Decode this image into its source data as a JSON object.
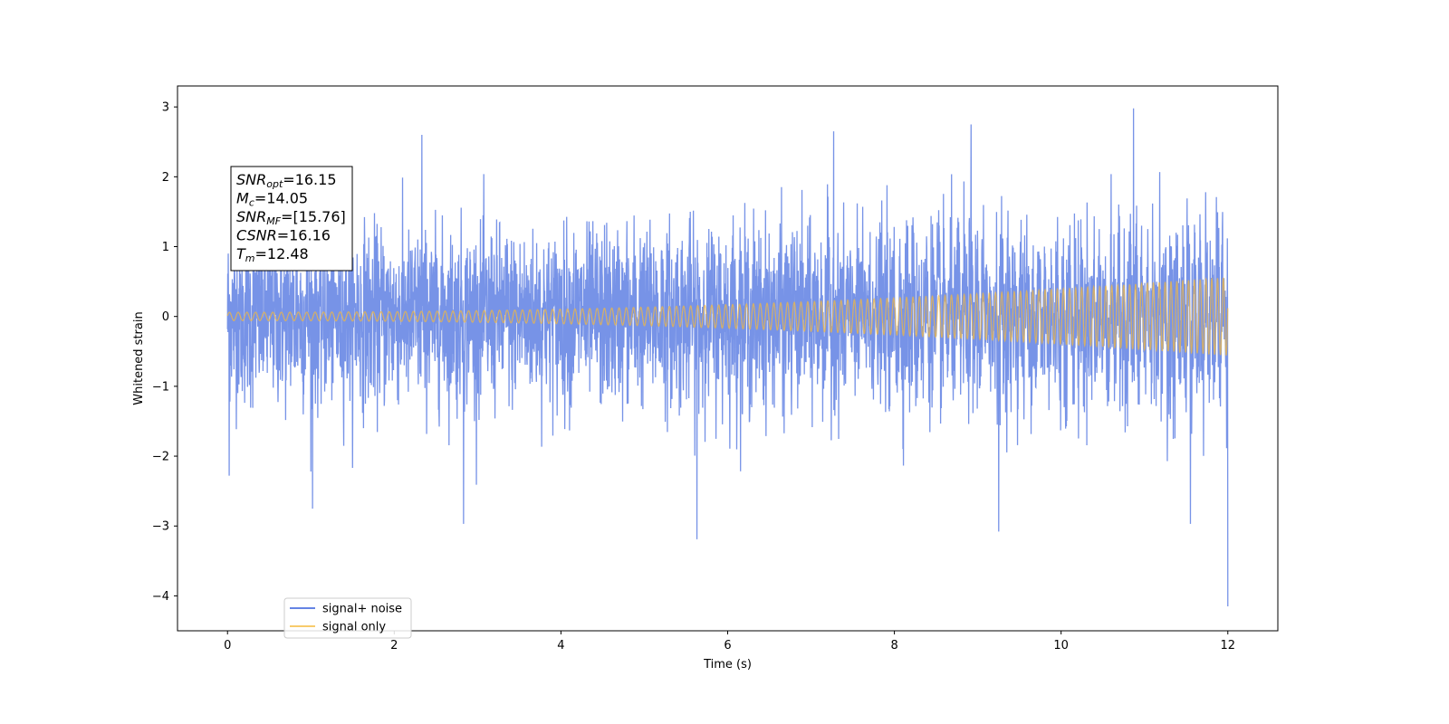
{
  "chart_data": {
    "type": "line",
    "title": "",
    "xlabel": "Time (s)",
    "ylabel": "Whitened strain",
    "xlim": [
      -0.6,
      12.6
    ],
    "ylim": [
      -4.5,
      3.3
    ],
    "xticks": [
      0,
      2,
      4,
      6,
      8,
      10,
      12
    ],
    "yticks": [
      -4,
      -3,
      -2,
      -1,
      0,
      1,
      2,
      3
    ],
    "grid": false,
    "legend": {
      "placement": "lower-left"
    },
    "annotation": {
      "lines": [
        {
          "base": "SNR",
          "sub": "opt",
          "rest": "=16.15"
        },
        {
          "base": "M",
          "sub": "c",
          "rest": "=14.05"
        },
        {
          "base": "SNR",
          "sub": "MF",
          "rest": "=[15.76]"
        },
        {
          "base": "CSNR",
          "sub": "",
          "rest": "=16.16"
        },
        {
          "base": "T",
          "sub": "m",
          "rest": "=12.48"
        }
      ]
    },
    "series": [
      {
        "name": "signal+ noise",
        "color": "#4a6fdf",
        "description_range": [
          -4.15,
          2.98
        ],
        "x_range": [
          0,
          12
        ],
        "noise_sigma": 0.62,
        "extreme_points": [
          {
            "x": 0.02,
            "y": -2.28
          },
          {
            "x": 1.02,
            "y": -2.75
          },
          {
            "x": 2.83,
            "y": -2.97
          },
          {
            "x": 5.63,
            "y": -3.19
          },
          {
            "x": 9.25,
            "y": -3.08
          },
          {
            "x": 11.55,
            "y": -2.97
          },
          {
            "x": 12.0,
            "y": -4.15
          },
          {
            "x": 10.87,
            "y": 2.98
          },
          {
            "x": 8.92,
            "y": 2.75
          },
          {
            "x": 7.27,
            "y": 2.65
          },
          {
            "x": 2.33,
            "y": 2.6
          }
        ]
      },
      {
        "name": "signal only",
        "color": "#f6b93b",
        "x_range": [
          0,
          12
        ],
        "amplitude_start": 0.06,
        "amplitude_end": 0.56,
        "cycles_start_hz": 9.5,
        "cycles_end_hz": 14.5
      }
    ]
  }
}
